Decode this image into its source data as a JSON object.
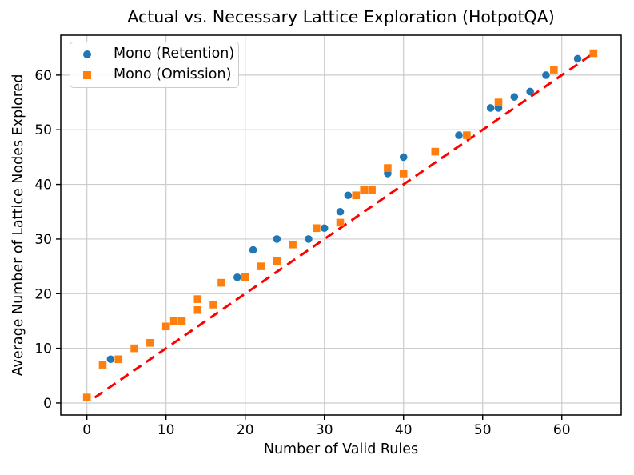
{
  "chart_data": {
    "type": "scatter",
    "title": "Actual vs. Necessary Lattice Exploration (HotpotQA)",
    "xlabel": "Number of Valid Rules",
    "ylabel": "Average Number of Lattice Nodes Explored",
    "xlim": [
      -3.3,
      67.5
    ],
    "ylim": [
      -2.2,
      67.3
    ],
    "xticks": [
      0,
      10,
      20,
      30,
      40,
      50,
      60
    ],
    "yticks": [
      0,
      10,
      20,
      30,
      40,
      50,
      60
    ],
    "grid": true,
    "legend_position": "upper left",
    "series": [
      {
        "name": "Mono (Retention)",
        "marker": "circle",
        "color": "#1f77b4",
        "points": [
          [
            3,
            8
          ],
          [
            19,
            23
          ],
          [
            21,
            28
          ],
          [
            24,
            30
          ],
          [
            28,
            30
          ],
          [
            30,
            32
          ],
          [
            32,
            35
          ],
          [
            33,
            38
          ],
          [
            38,
            42
          ],
          [
            40,
            45
          ],
          [
            47,
            49
          ],
          [
            51,
            54
          ],
          [
            52,
            54
          ],
          [
            54,
            56
          ],
          [
            56,
            57
          ],
          [
            58,
            60
          ],
          [
            62,
            63
          ]
        ]
      },
      {
        "name": "Mono (Omission)",
        "marker": "square",
        "color": "#ff7f0e",
        "points": [
          [
            0,
            1
          ],
          [
            2,
            7
          ],
          [
            4,
            8
          ],
          [
            6,
            10
          ],
          [
            8,
            11
          ],
          [
            10,
            14
          ],
          [
            11,
            15
          ],
          [
            12,
            15
          ],
          [
            14,
            17
          ],
          [
            14,
            19
          ],
          [
            16,
            18
          ],
          [
            17,
            22
          ],
          [
            20,
            23
          ],
          [
            22,
            25
          ],
          [
            24,
            26
          ],
          [
            26,
            29
          ],
          [
            29,
            32
          ],
          [
            32,
            33
          ],
          [
            34,
            38
          ],
          [
            35,
            39
          ],
          [
            36,
            39
          ],
          [
            38,
            43
          ],
          [
            40,
            42
          ],
          [
            44,
            46
          ],
          [
            48,
            49
          ],
          [
            52,
            55
          ],
          [
            59,
            61
          ],
          [
            64,
            64
          ]
        ]
      }
    ],
    "reference_line": {
      "x1": 1,
      "y1": 1,
      "x2": 64.3,
      "y2": 64.3,
      "color": "#ff0000",
      "style": "dashed"
    }
  },
  "style": {
    "grid_color": "#cccccc",
    "spine_color": "#000000",
    "retention_color": "#1f77b4",
    "omission_color": "#ff7f0e",
    "reference_color": "#ff0000"
  }
}
